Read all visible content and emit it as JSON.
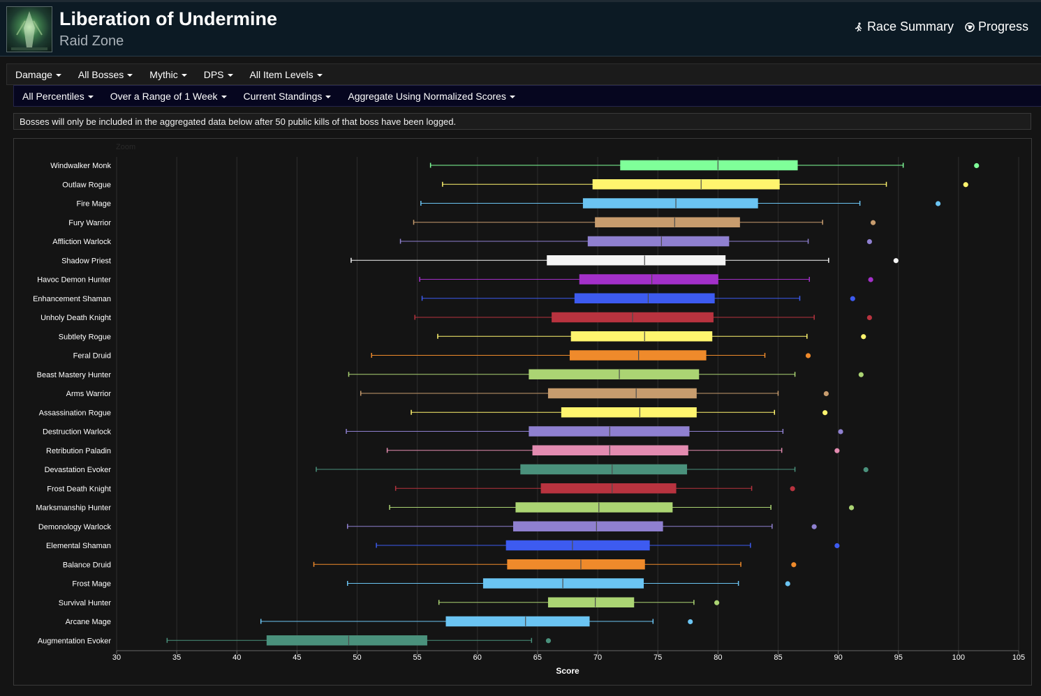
{
  "header": {
    "title": "Liberation of Undermine",
    "subtitle": "Raid Zone",
    "links": [
      {
        "label": "Race Summary",
        "icon": "runner-icon"
      },
      {
        "label": "Progress",
        "icon": "globe-icon"
      }
    ]
  },
  "filters_row1": [
    "Damage",
    "All Bosses",
    "Mythic",
    "DPS",
    "All Item Levels"
  ],
  "filters_row2": [
    "All Percentiles",
    "Over a Range of 1 Week",
    "Current Standings",
    "Aggregate Using Normalized Scores"
  ],
  "notice": "Bosses will only be included in the aggregated data below after 50 public kills of that boss have been logged.",
  "chart_data": {
    "type": "boxplot",
    "orientation": "horizontal",
    "zoom_label": "Zoom",
    "xlabel": "Score",
    "xlim": [
      30,
      105
    ],
    "xticks": [
      30,
      35,
      40,
      45,
      50,
      55,
      60,
      65,
      70,
      75,
      80,
      85,
      90,
      95,
      100,
      105
    ],
    "grid": true,
    "series": [
      {
        "name": "Windwalker Monk",
        "color": "#7fff99",
        "min": 56.1,
        "q1": 71.9,
        "median": 80.0,
        "q3": 86.6,
        "max": 95.4,
        "outlier": 101.5
      },
      {
        "name": "Outlaw Rogue",
        "color": "#fff46e",
        "min": 57.1,
        "q1": 69.6,
        "median": 78.6,
        "q3": 85.1,
        "max": 94.0,
        "outlier": 100.6
      },
      {
        "name": "Fire Mage",
        "color": "#6bc4f2",
        "min": 55.3,
        "q1": 68.8,
        "median": 76.5,
        "q3": 83.3,
        "max": 91.8,
        "outlier": 98.3
      },
      {
        "name": "Fury Warrior",
        "color": "#c79c6e",
        "min": 54.7,
        "q1": 69.8,
        "median": 76.4,
        "q3": 81.8,
        "max": 88.7,
        "outlier": 92.9
      },
      {
        "name": "Affliction Warlock",
        "color": "#8f80d0",
        "min": 53.6,
        "q1": 69.2,
        "median": 75.3,
        "q3": 80.9,
        "max": 87.5,
        "outlier": 92.6
      },
      {
        "name": "Shadow Priest",
        "color": "#f4f4f4",
        "min": 49.5,
        "q1": 65.8,
        "median": 73.9,
        "q3": 80.6,
        "max": 89.2,
        "outlier": 94.8
      },
      {
        "name": "Havoc Demon Hunter",
        "color": "#a330c9",
        "min": 55.2,
        "q1": 68.5,
        "median": 74.5,
        "q3": 80.0,
        "max": 87.6,
        "outlier": 92.7
      },
      {
        "name": "Enhancement Shaman",
        "color": "#3d5bf0",
        "min": 55.4,
        "q1": 68.1,
        "median": 74.2,
        "q3": 79.7,
        "max": 86.8,
        "outlier": 91.2
      },
      {
        "name": "Unholy Death Knight",
        "color": "#b8333f",
        "min": 54.8,
        "q1": 66.2,
        "median": 72.9,
        "q3": 79.6,
        "max": 88.0,
        "outlier": 92.6
      },
      {
        "name": "Subtlety Rogue",
        "color": "#fff46e",
        "min": 56.7,
        "q1": 67.8,
        "median": 73.9,
        "q3": 79.5,
        "max": 87.4,
        "outlier": 92.1
      },
      {
        "name": "Feral Druid",
        "color": "#ef8a2b",
        "min": 51.2,
        "q1": 67.7,
        "median": 73.4,
        "q3": 79.0,
        "max": 83.9,
        "outlier": 87.5
      },
      {
        "name": "Beast Mastery Hunter",
        "color": "#abd473",
        "min": 49.3,
        "q1": 64.3,
        "median": 71.8,
        "q3": 78.4,
        "max": 86.4,
        "outlier": 91.9
      },
      {
        "name": "Arms Warrior",
        "color": "#c79c6e",
        "min": 50.3,
        "q1": 65.9,
        "median": 73.2,
        "q3": 78.2,
        "max": 85.0,
        "outlier": 89.0
      },
      {
        "name": "Assassination Rogue",
        "color": "#fff46e",
        "min": 54.5,
        "q1": 67.0,
        "median": 73.5,
        "q3": 78.2,
        "max": 84.7,
        "outlier": 88.9
      },
      {
        "name": "Destruction Warlock",
        "color": "#8f80d0",
        "min": 49.1,
        "q1": 64.3,
        "median": 71.0,
        "q3": 77.6,
        "max": 85.4,
        "outlier": 90.2
      },
      {
        "name": "Retribution Paladin",
        "color": "#e38bb0",
        "min": 52.5,
        "q1": 64.6,
        "median": 71.0,
        "q3": 77.5,
        "max": 85.3,
        "outlier": 89.9
      },
      {
        "name": "Devastation Evoker",
        "color": "#4a917c",
        "min": 46.6,
        "q1": 63.6,
        "median": 71.2,
        "q3": 77.4,
        "max": 86.4,
        "outlier": 92.3
      },
      {
        "name": "Frost Death Knight",
        "color": "#b8333f",
        "min": 53.2,
        "q1": 65.3,
        "median": 71.2,
        "q3": 76.5,
        "max": 82.8,
        "outlier": 86.2
      },
      {
        "name": "Marksmanship Hunter",
        "color": "#abd473",
        "min": 52.7,
        "q1": 63.2,
        "median": 70.1,
        "q3": 76.2,
        "max": 84.4,
        "outlier": 91.1
      },
      {
        "name": "Demonology Warlock",
        "color": "#8f80d0",
        "min": 49.2,
        "q1": 63.0,
        "median": 69.9,
        "q3": 75.4,
        "max": 84.5,
        "outlier": 88.0
      },
      {
        "name": "Elemental Shaman",
        "color": "#3d5bf0",
        "min": 51.6,
        "q1": 62.4,
        "median": 67.9,
        "q3": 74.3,
        "max": 82.7,
        "outlier": 89.9
      },
      {
        "name": "Balance Druid",
        "color": "#ef8a2b",
        "min": 46.4,
        "q1": 62.5,
        "median": 68.6,
        "q3": 73.9,
        "max": 81.9,
        "outlier": 86.3
      },
      {
        "name": "Frost Mage",
        "color": "#6bc4f2",
        "min": 49.2,
        "q1": 60.5,
        "median": 67.1,
        "q3": 73.8,
        "max": 81.7,
        "outlier": 85.8
      },
      {
        "name": "Survival Hunter",
        "color": "#abd473",
        "min": 56.8,
        "q1": 65.9,
        "median": 69.8,
        "q3": 73.0,
        "max": 78.0,
        "outlier": 79.9
      },
      {
        "name": "Arcane Mage",
        "color": "#6bc4f2",
        "min": 42.0,
        "q1": 57.4,
        "median": 64.0,
        "q3": 69.3,
        "max": 74.6,
        "outlier": 77.7
      },
      {
        "name": "Augmentation Evoker",
        "color": "#4a917c",
        "min": 34.2,
        "q1": 42.5,
        "median": 49.3,
        "q3": 55.8,
        "max": 64.5,
        "outlier": 65.9
      }
    ]
  }
}
